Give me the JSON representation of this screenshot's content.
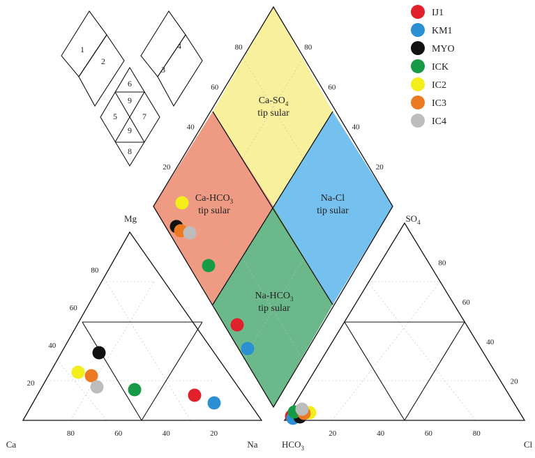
{
  "chart_data": {
    "type": "scatter",
    "subtype": "piper-diagram",
    "cation_triangle": {
      "corners": {
        "left": "Ca",
        "top": "Mg",
        "right": "Na"
      },
      "bottom_ticks": [
        "80",
        "60",
        "40",
        "20"
      ],
      "left_ticks": [
        "20",
        "40",
        "60",
        "80"
      ]
    },
    "anion_triangle": {
      "corners": {
        "left": "HCO",
        "left_sub": "3",
        "top": "SO",
        "top_sub": "4",
        "right": "Cl"
      },
      "bottom_ticks": [
        "20",
        "40",
        "60",
        "80"
      ],
      "right_ticks": [
        "20",
        "40",
        "60",
        "80"
      ]
    },
    "diamond": {
      "left_ticks": [
        "20",
        "40",
        "60",
        "80"
      ],
      "right_ticks": [
        "20",
        "40",
        "60",
        "80"
      ],
      "zones": [
        {
          "id": "ca-so4",
          "line1": "Ca-SO",
          "sub": "4",
          "line2": "tip sular",
          "color": "#f8f09c"
        },
        {
          "id": "ca-hco3",
          "line1": "Ca-HCO",
          "sub": "3",
          "line2": "tip sular",
          "color": "#ef9b84"
        },
        {
          "id": "na-cl",
          "line1": "Na-Cl",
          "sub": "",
          "line2": "tip sular",
          "color": "#74c0ee"
        },
        {
          "id": "na-hco3",
          "line1": "Na-HCO",
          "sub": "3",
          "line2": "tip sular",
          "color": "#6bb98b"
        }
      ]
    },
    "key_labels": [
      "1",
      "2",
      "3",
      "4",
      "5",
      "6",
      "7",
      "8",
      "9",
      "9"
    ],
    "series": [
      {
        "name": "IJ1",
        "color": "#e0202a",
        "cation": {
          "Ca": 10,
          "Mg": 13,
          "Na": 77
        },
        "anion": {
          "HCO3": 96,
          "SO4": 3,
          "Cl": 1
        }
      },
      {
        "name": "KM1",
        "color": "#2b8fd4",
        "cation": {
          "Ca": 6,
          "Mg": 11,
          "Na": 83
        },
        "anion": {
          "HCO3": 97,
          "SO4": 2,
          "Cl": 1
        }
      },
      {
        "name": "MYO",
        "color": "#111111",
        "cation": {
          "Ca": 44,
          "Mg": 40,
          "Na": 16
        },
        "anion": {
          "HCO3": 92,
          "SO4": 6,
          "Cl": 2
        }
      },
      {
        "name": "ICK",
        "color": "#169a45",
        "cation": {
          "Ca": 38,
          "Mg": 16,
          "Na": 46
        },
        "anion": {
          "HCO3": 93,
          "SO4": 6,
          "Cl": 1
        }
      },
      {
        "name": "IC2",
        "color": "#f3ed1a",
        "cation": {
          "Ca": 61,
          "Mg": 24,
          "Na": 15
        },
        "anion": {
          "HCO3": 87,
          "SO4": 9,
          "Cl": 4
        }
      },
      {
        "name": "IC3",
        "color": "#ec7a22",
        "cation": {
          "Ca": 52,
          "Mg": 22,
          "Na": 26
        },
        "anion": {
          "HCO3": 90,
          "SO4": 7,
          "Cl": 3
        }
      },
      {
        "name": "IC4",
        "color": "#bdbdbd",
        "cation": {
          "Ca": 50,
          "Mg": 16,
          "Na": 34
        },
        "anion": {
          "HCO3": 89,
          "SO4": 8,
          "Cl": 3
        }
      }
    ]
  }
}
